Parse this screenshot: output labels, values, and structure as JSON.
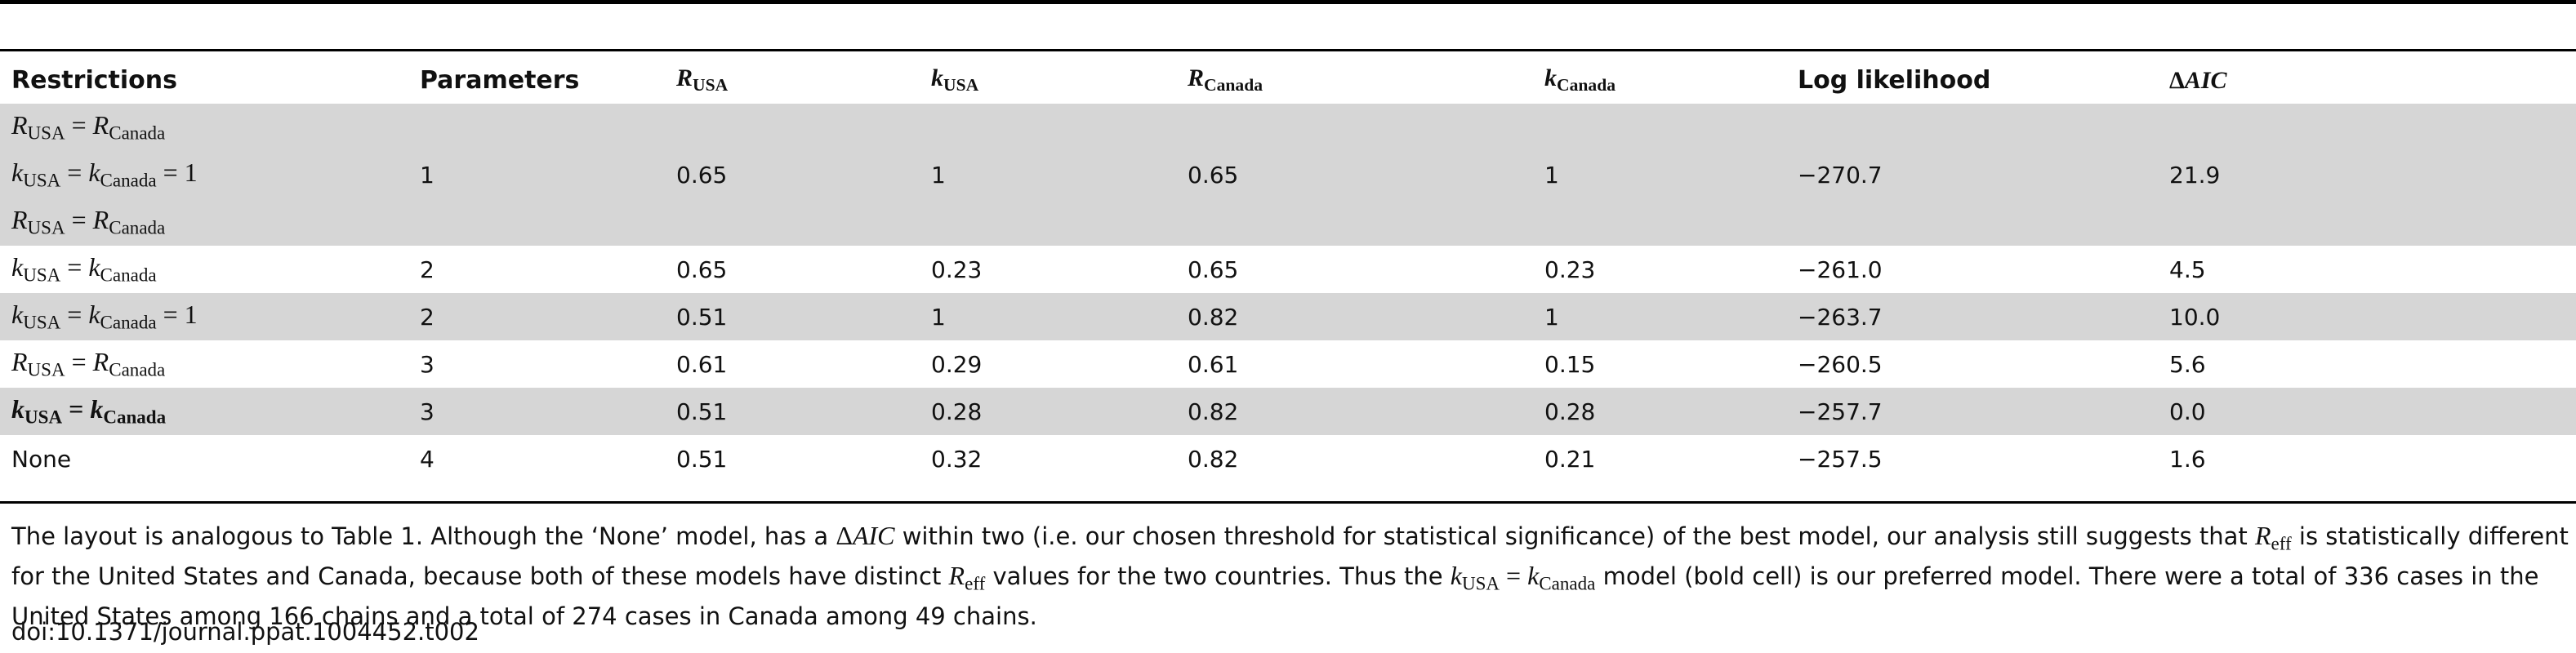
{
  "table": {
    "headers": {
      "restrictions": "Restrictions",
      "parameters": "Parameters",
      "r_usa": {
        "base": "R",
        "sub": "USA"
      },
      "k_usa": {
        "base": "k",
        "sub": "USA"
      },
      "r_canada": {
        "base": "R",
        "sub": "Canada"
      },
      "k_canada": {
        "base": "k",
        "sub": "Canada"
      },
      "log_likelihood": "Log likelihood",
      "delta_aic": {
        "prefix": "Δ",
        "italic": "AIC"
      }
    },
    "rows": [
      {
        "r1": "R",
        "s1": "USA",
        "eq": " = ",
        "r2": "R",
        "s2": "Canada",
        "tail": "",
        "params": "",
        "r_usa": "",
        "k_usa": "",
        "r_canada": "",
        "k_canada": "",
        "loglik": "",
        "daic": ""
      },
      {
        "r1": "k",
        "s1": "USA",
        "eq": " = ",
        "r2": "k",
        "s2": "Canada",
        "tail": " = 1",
        "params": "1",
        "r_usa": "0.65",
        "k_usa": "1",
        "r_canada": "0.65",
        "k_canada": "1",
        "loglik": "−270.7",
        "daic": "21.9"
      },
      {
        "r1": "R",
        "s1": "USA",
        "eq": " = ",
        "r2": "R",
        "s2": "Canada",
        "tail": "",
        "params": "",
        "r_usa": "",
        "k_usa": "",
        "r_canada": "",
        "k_canada": "",
        "loglik": "",
        "daic": ""
      },
      {
        "r1": "k",
        "s1": "USA",
        "eq": " = ",
        "r2": "k",
        "s2": "Canada",
        "tail": "",
        "params": "2",
        "r_usa": "0.65",
        "k_usa": "0.23",
        "r_canada": "0.65",
        "k_canada": "0.23",
        "loglik": "−261.0",
        "daic": "4.5"
      },
      {
        "r1": "k",
        "s1": "USA",
        "eq": " = ",
        "r2": "k",
        "s2": "Canada",
        "tail": " = 1",
        "params": "2",
        "r_usa": "0.51",
        "k_usa": "1",
        "r_canada": "0.82",
        "k_canada": "1",
        "loglik": "−263.7",
        "daic": "10.0"
      },
      {
        "r1": "R",
        "s1": "USA",
        "eq": " = ",
        "r2": "R",
        "s2": "Canada",
        "tail": "",
        "params": "3",
        "r_usa": "0.61",
        "k_usa": "0.29",
        "r_canada": "0.61",
        "k_canada": "0.15",
        "loglik": "−260.5",
        "daic": "5.6"
      },
      {
        "r1": "k",
        "s1": "USA",
        "eq": " = ",
        "r2": "k",
        "s2": "Canada",
        "tail": "",
        "params": "3",
        "r_usa": "0.51",
        "k_usa": "0.28",
        "r_canada": "0.82",
        "k_canada": "0.28",
        "loglik": "−257.7",
        "daic": "0.0"
      },
      {
        "label": "None",
        "params": "4",
        "r_usa": "0.51",
        "k_usa": "0.32",
        "r_canada": "0.82",
        "k_canada": "0.21",
        "loglik": "−257.5",
        "daic": "1.6"
      }
    ]
  },
  "caption": {
    "part1": "The layout is analogous to Table 1. Although the ‘None’ model, has a ",
    "daic_prefix": "Δ",
    "daic_italic": "AIC",
    "part2": " within two (i.e. our chosen threshold for statistical significance) of the best model, our analysis still suggests that ",
    "reff_base": "R",
    "reff_sub": "eff",
    "part3": " is statistically different for the United States and Canada, because both of these models have distinct ",
    "part4": " values for the two countries. Thus the ",
    "k_base": "k",
    "k_sub1": "USA",
    "k_eq": " = ",
    "k_sub2": "Canada",
    "part5": " model (bold cell) is our preferred model. There were a total of 336 cases in the United States among 166 chains and a total of 274 cases in Canada among 49 chains."
  },
  "doi": "doi:10.1371/journal.ppat.1004452.t002"
}
